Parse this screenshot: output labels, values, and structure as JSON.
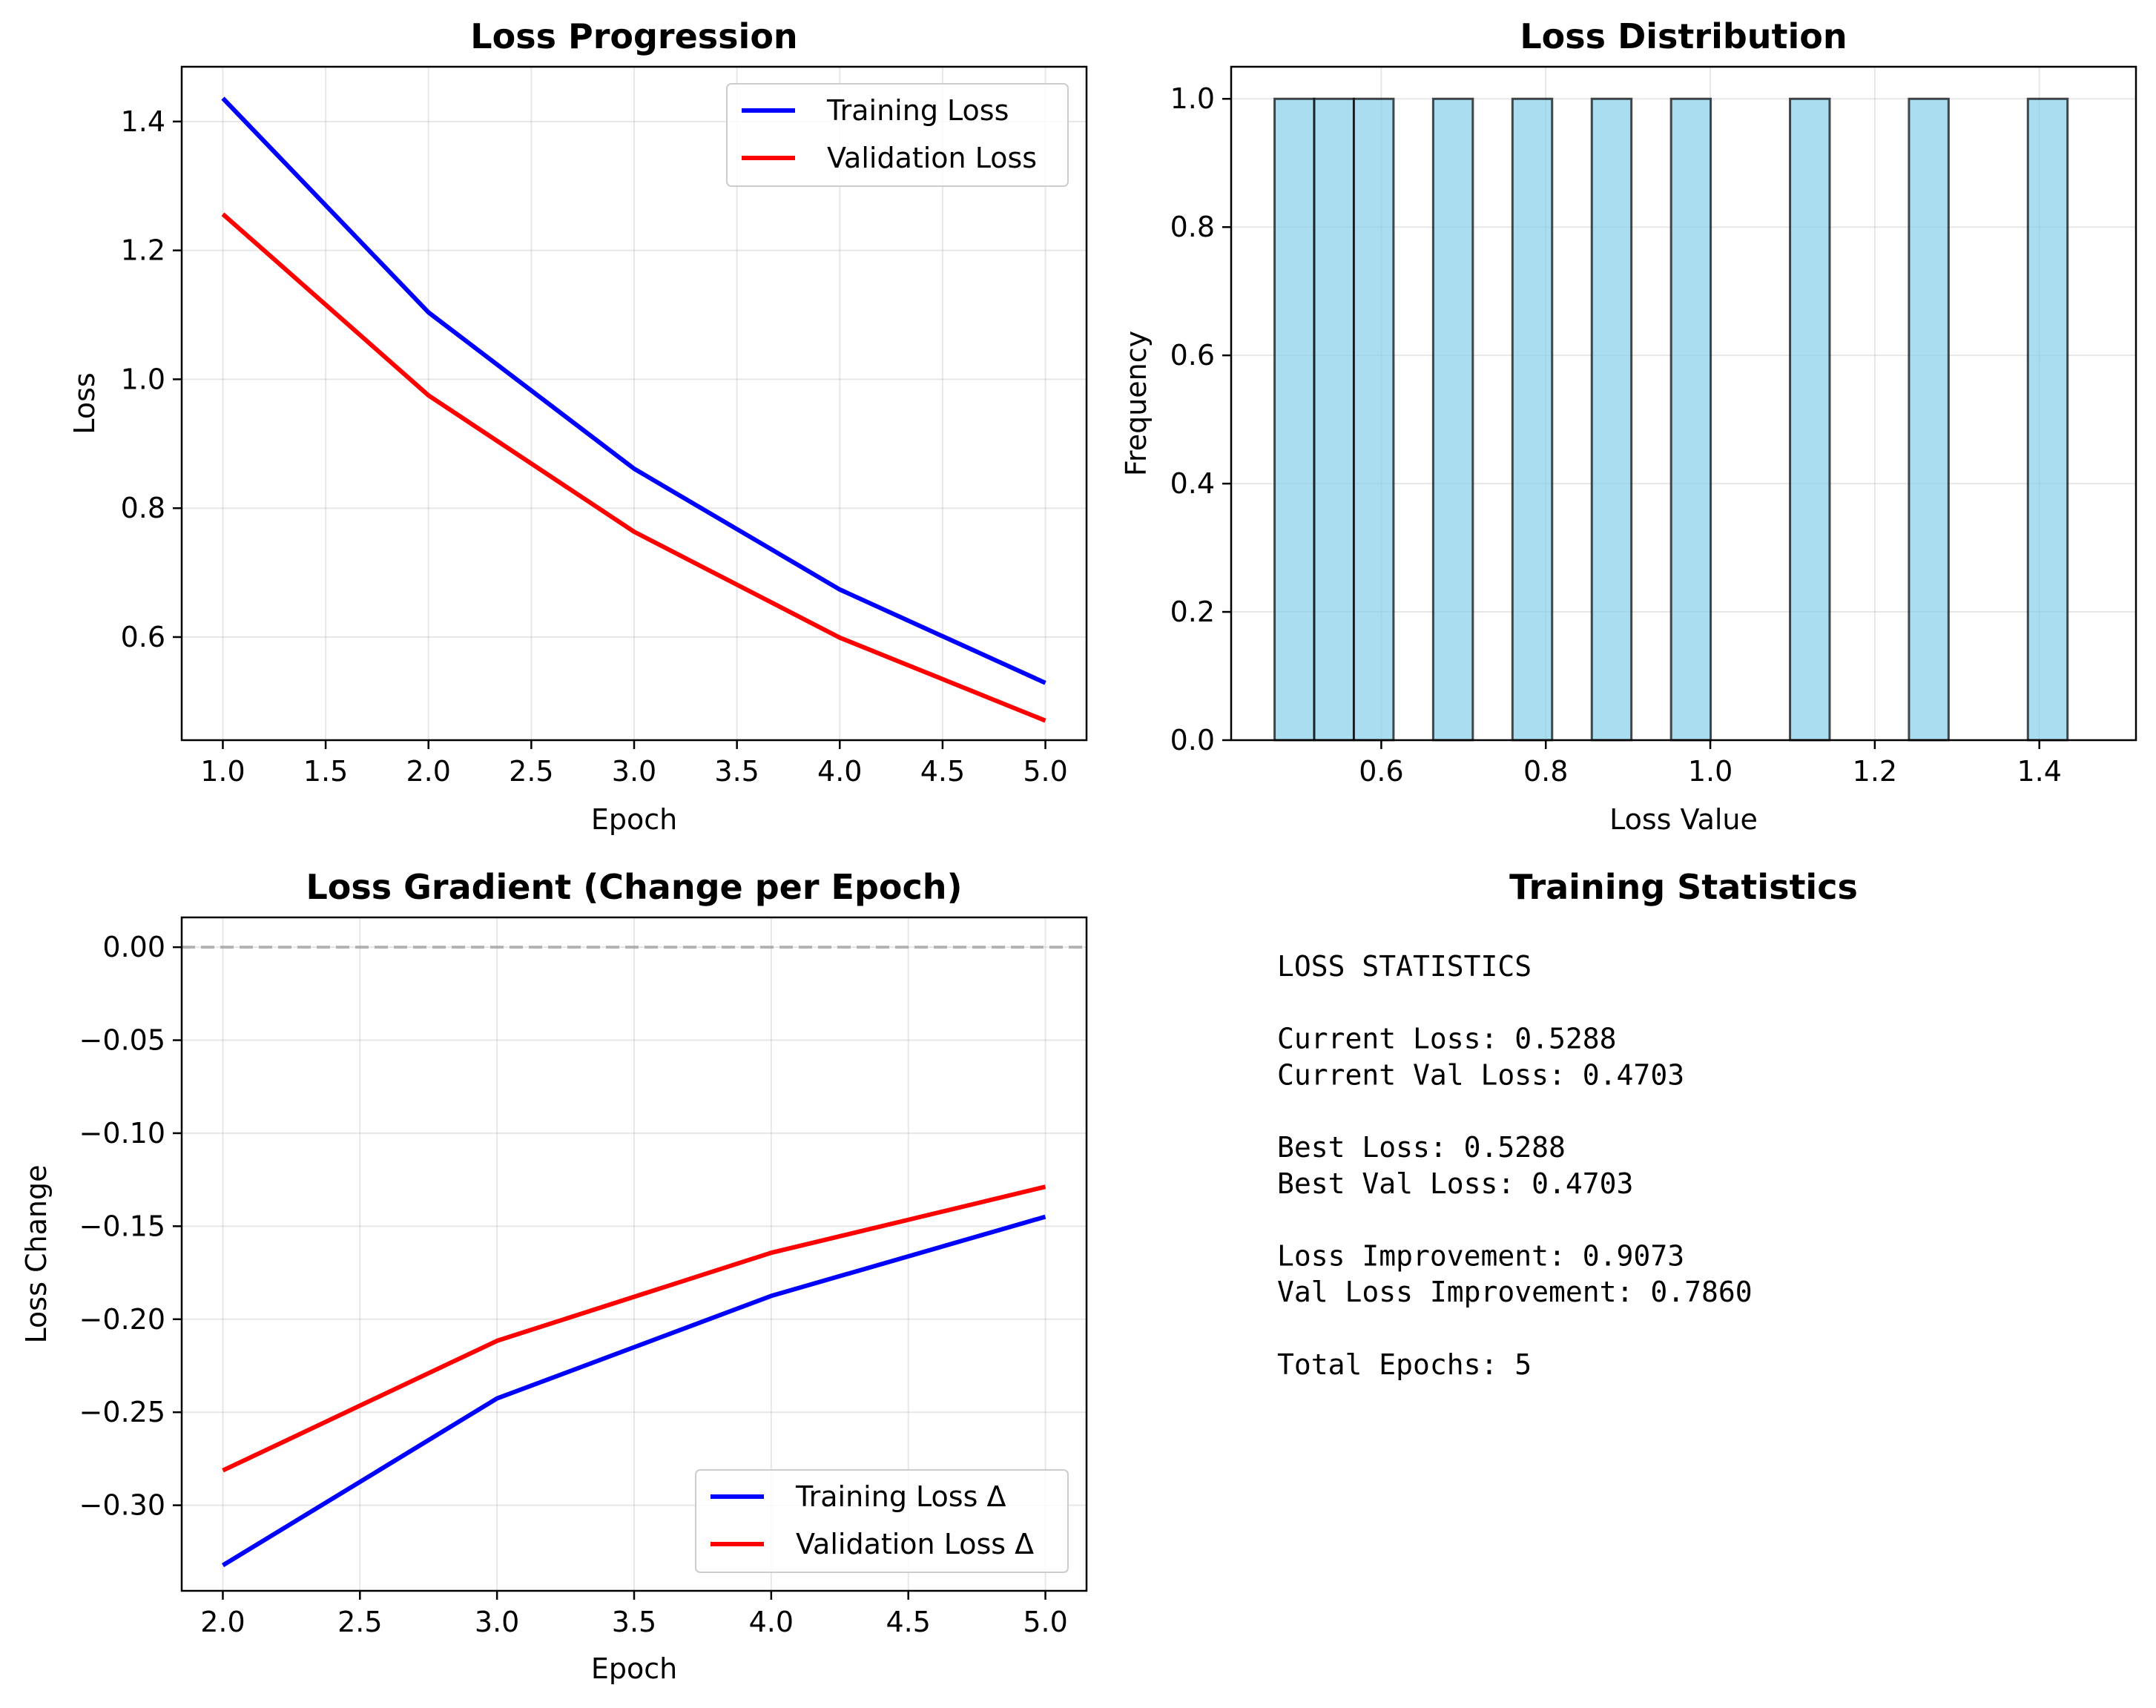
{
  "chart_data": [
    {
      "type": "line",
      "title": "Loss Progression",
      "xlabel": "Epoch",
      "ylabel": "Loss",
      "xlim": [
        0.8,
        5.2
      ],
      "ylim": [
        0.44,
        1.485
      ],
      "xticks": [
        "1.0",
        "1.5",
        "2.0",
        "2.5",
        "3.0",
        "3.5",
        "4.0",
        "4.5",
        "5.0"
      ],
      "yticks": [
        "0.6",
        "0.8",
        "1.0",
        "1.2",
        "1.4"
      ],
      "grid": true,
      "legend": "top-right",
      "x": [
        1,
        2,
        3,
        4,
        5
      ],
      "series": [
        {
          "name": "Training Loss",
          "color": "#0000ff",
          "values": [
            1.4361,
            1.1038,
            0.8612,
            0.6737,
            0.5288
          ]
        },
        {
          "name": "Validation Loss",
          "color": "#ff0000",
          "values": [
            1.2563,
            0.975,
            0.7634,
            0.5991,
            0.4703
          ]
        }
      ]
    },
    {
      "type": "bar",
      "title": "Loss Distribution",
      "xlabel": "Loss Value",
      "ylabel": "Frequency",
      "xlim": [
        0.4175,
        1.5175
      ],
      "ylim": [
        0,
        1.05
      ],
      "xticks": [
        "0.6",
        "0.8",
        "1.0",
        "1.2",
        "1.4"
      ],
      "yticks": [
        "0.0",
        "0.2",
        "0.4",
        "0.6",
        "0.8",
        "1.0"
      ],
      "grid": true,
      "bar_color": "#87ceeb",
      "bin_edges": [
        0.4703,
        0.5185,
        0.5667,
        0.6149,
        0.6631,
        0.7113,
        0.7595,
        0.8077,
        0.8559,
        0.9041,
        0.9523,
        1.0005,
        1.0487,
        1.0969,
        1.1451,
        1.1933,
        1.2415,
        1.2897,
        1.3379,
        1.3861,
        1.4343
      ],
      "values": [
        1,
        1,
        1,
        0,
        1,
        0,
        1,
        0,
        1,
        0,
        1,
        0,
        0,
        1,
        0,
        0,
        1,
        0,
        0,
        1
      ]
    },
    {
      "type": "line",
      "title": "Loss Gradient (Change per Epoch)",
      "xlabel": "Epoch",
      "ylabel": "Loss Change",
      "xlim": [
        1.85,
        5.15
      ],
      "ylim": [
        -0.346,
        0.016
      ],
      "xticks": [
        "2.0",
        "2.5",
        "3.0",
        "3.5",
        "4.0",
        "4.5",
        "5.0"
      ],
      "yticks": [
        "0.00",
        "−0.05",
        "−0.10",
        "−0.15",
        "−0.20",
        "−0.25",
        "−0.30"
      ],
      "grid": true,
      "legend": "bottom-right",
      "reference_line_y": 0,
      "x": [
        2,
        3,
        4,
        5
      ],
      "series": [
        {
          "name": "Training Loss Δ",
          "color": "#0000ff",
          "values": [
            -0.3323,
            -0.2426,
            -0.1875,
            -0.1449
          ]
        },
        {
          "name": "Validation Loss Δ",
          "color": "#ff0000",
          "values": [
            -0.2813,
            -0.2116,
            -0.1643,
            -0.1288
          ]
        }
      ]
    }
  ],
  "stats": {
    "title": "Training Statistics",
    "lines": [
      "LOSS STATISTICS",
      "",
      "Current Loss: 0.5288",
      "Current Val Loss: 0.4703",
      "",
      "Best Loss: 0.5288",
      "Best Val Loss: 0.4703",
      "",
      "Loss Improvement: 0.9073",
      "Val Loss Improvement: 0.7860",
      "",
      "Total Epochs: 5"
    ]
  }
}
